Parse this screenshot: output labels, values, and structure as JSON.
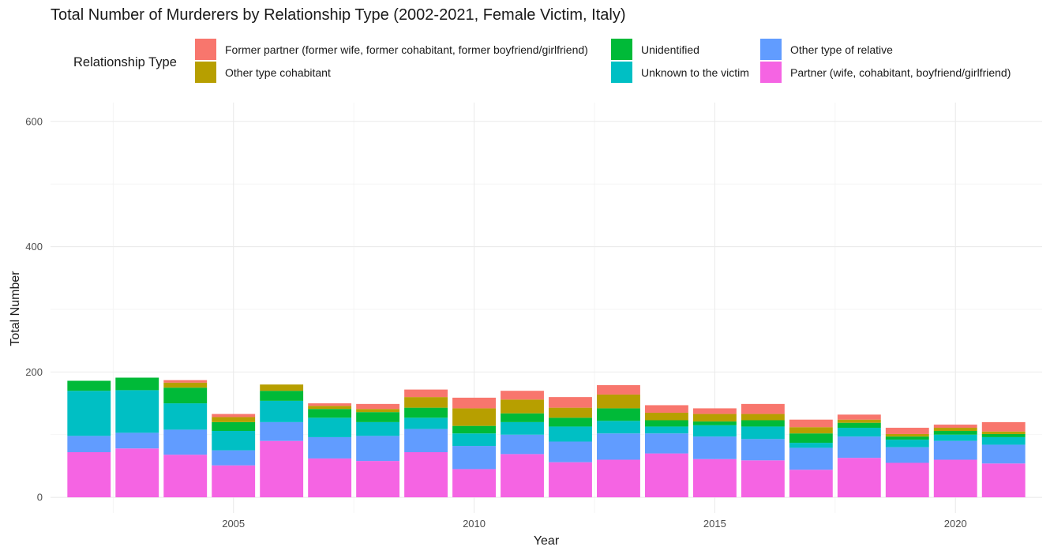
{
  "chart_data": {
    "type": "bar",
    "stacked": true,
    "title": "Total Number of Murderers by Relationship Type (2002-2021, Female Victim, Italy)",
    "xlabel": "Year",
    "ylabel": "Total Number",
    "legend_title": "Relationship Type",
    "legend_position": "top",
    "grid": true,
    "ylim": [
      -25,
      630
    ],
    "xlim": [
      2001.2,
      2021.8
    ],
    "y_ticks": [
      0,
      200,
      400,
      600
    ],
    "x_ticks": [
      2005,
      2010,
      2015,
      2020
    ],
    "x": [
      2002,
      2003,
      2004,
      2005,
      2006,
      2007,
      2008,
      2009,
      2010,
      2011,
      2012,
      2013,
      2014,
      2015,
      2016,
      2017,
      2018,
      2019,
      2020,
      2021
    ],
    "series": [
      {
        "name": "Partner (wife, cohabitant, boyfriend/girlfriend)",
        "color": "#F564E3",
        "values": [
          72,
          78,
          68,
          51,
          90,
          62,
          58,
          72,
          45,
          69,
          56,
          60,
          70,
          61,
          59,
          44,
          63,
          55,
          60,
          54
        ]
      },
      {
        "name": "Other type of relative",
        "color": "#619CFF",
        "values": [
          26,
          25,
          40,
          24,
          30,
          34,
          40,
          37,
          37,
          31,
          33,
          42,
          32,
          36,
          34,
          35,
          34,
          25,
          30,
          30
        ]
      },
      {
        "name": "Unknown to the victim",
        "color": "#00BFC4",
        "values": [
          72,
          68,
          42,
          31,
          34,
          31,
          22,
          18,
          20,
          20,
          24,
          20,
          11,
          18,
          20,
          8,
          14,
          12,
          10,
          12
        ]
      },
      {
        "name": "Unidentified",
        "color": "#00BA38",
        "values": [
          16,
          20,
          25,
          14,
          16,
          14,
          16,
          16,
          12,
          14,
          14,
          20,
          10,
          6,
          10,
          15,
          8,
          5,
          6,
          5
        ]
      },
      {
        "name": "Other type cohabitant",
        "color": "#B79F00",
        "values": [
          0,
          0,
          8,
          8,
          10,
          5,
          5,
          17,
          28,
          22,
          16,
          22,
          12,
          12,
          10,
          10,
          5,
          4,
          5,
          4
        ]
      },
      {
        "name": "Former partner (former wife, former cohabitant, former boyfriend/girlfriend)",
        "color": "#F8766D",
        "values": [
          0,
          0,
          4,
          5,
          0,
          4,
          8,
          12,
          17,
          14,
          17,
          15,
          12,
          9,
          16,
          12,
          8,
          10,
          5,
          15
        ]
      }
    ]
  },
  "legend": {
    "rows": [
      [
        "Former partner (former wife, former cohabitant, former boyfriend/girlfriend)",
        "Unidentified",
        "Other type of relative"
      ],
      [
        "Other type cohabitant",
        "Unknown to the victim",
        "Partner (wife, cohabitant, boyfriend/girlfriend)"
      ]
    ]
  }
}
